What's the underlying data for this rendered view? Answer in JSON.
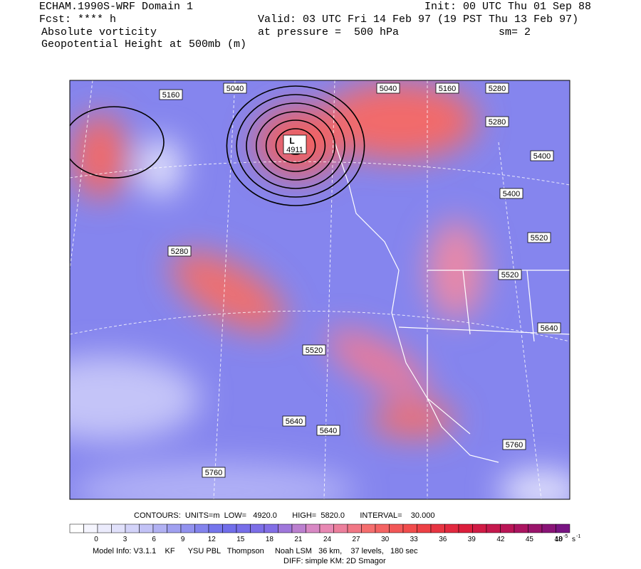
{
  "header": {
    "model": "ECHAM.1990S-WRF Domain 1",
    "fcst": "Fcst: **** h",
    "field1": "Absolute vorticity",
    "field2": "Geopotential Height at 500mb (m)",
    "init": "Init: 00 UTC Thu 01 Sep 88",
    "valid": "Valid: 03 UTC Fri 14 Feb 97 (19 PST Thu 13 Feb 97)",
    "pressure": "at pressure =  500 hPa",
    "sm": "sm= 2"
  },
  "map": {
    "low_symbol": "L",
    "low_value": "4911",
    "contour_labels": [
      "5040",
      "5160",
      "5040",
      "5160",
      "5280",
      "5280",
      "5400",
      "5400",
      "5520",
      "5520",
      "5640",
      "5280",
      "5520",
      "5640",
      "5640",
      "5760",
      "5760"
    ]
  },
  "contours_info": "CONTOURS:  UNITS=m  LOW=   4920.0       HIGH=  5820.0       INTERVAL=    30.000",
  "colorbar": {
    "ticks": [
      0,
      3,
      6,
      9,
      12,
      15,
      18,
      21,
      24,
      27,
      30,
      33,
      36,
      39,
      42,
      45,
      48
    ],
    "units_base": "10",
    "units_exp": "-5",
    "units_s": "s",
    "units_s_exp": "-1"
  },
  "footer": {
    "model_info": "Model Info: V3.1.1    KF      YSU PBL   Thompson     Noah LSM   36 km,    37 levels,   180 sec",
    "diff": "DIFF: simple KM: 2D Smagor"
  }
}
